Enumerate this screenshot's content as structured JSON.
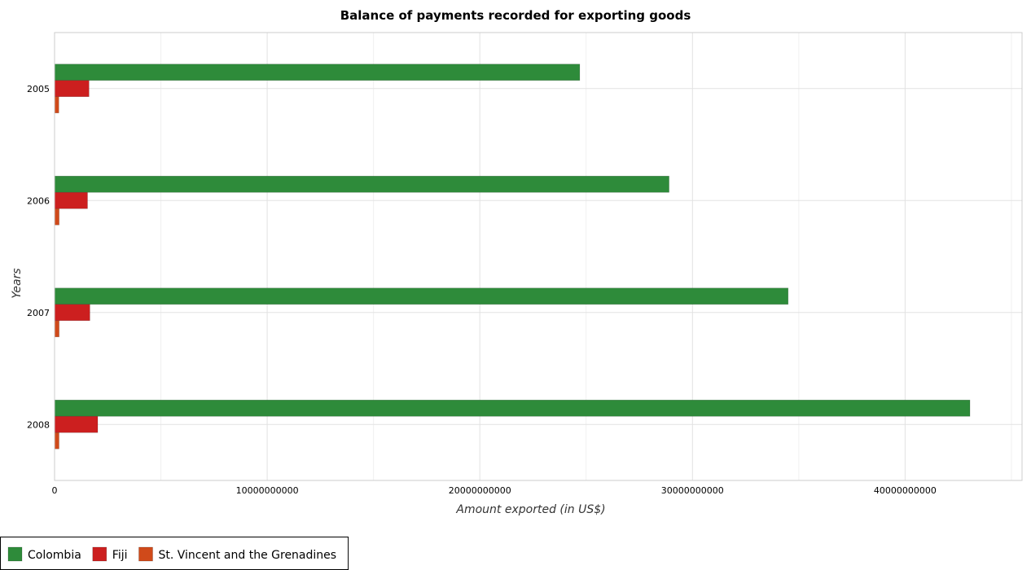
{
  "chart_data": {
    "type": "bar",
    "orientation": "horizontal",
    "title": "Balance of payments recorded for exporting goods",
    "xlabel": "Amount exported (in US$)",
    "ylabel": "Years",
    "categories": [
      "2005",
      "2006",
      "2007",
      "2008"
    ],
    "xlim": [
      0,
      45500000000
    ],
    "xticks": [
      0,
      10000000000,
      20000000000,
      30000000000,
      40000000000
    ],
    "xtick_labels": [
      "0",
      "10000000000",
      "20000000000",
      "30000000000",
      "40000000000"
    ],
    "grid": true,
    "legend_position": "bottom-left",
    "series": [
      {
        "name": "Colombia",
        "color": "#2e8b3a",
        "values": [
          24700000000,
          28900000000,
          34500000000,
          43050000000
        ]
      },
      {
        "name": "Fiji",
        "color": "#cc1f1f",
        "values": [
          1620000000,
          1550000000,
          1660000000,
          2030000000
        ]
      },
      {
        "name": "St. Vincent and the Grenadines",
        "color": "#d04a1a",
        "values": [
          200000000,
          215000000,
          215000000,
          210000000
        ]
      }
    ]
  }
}
